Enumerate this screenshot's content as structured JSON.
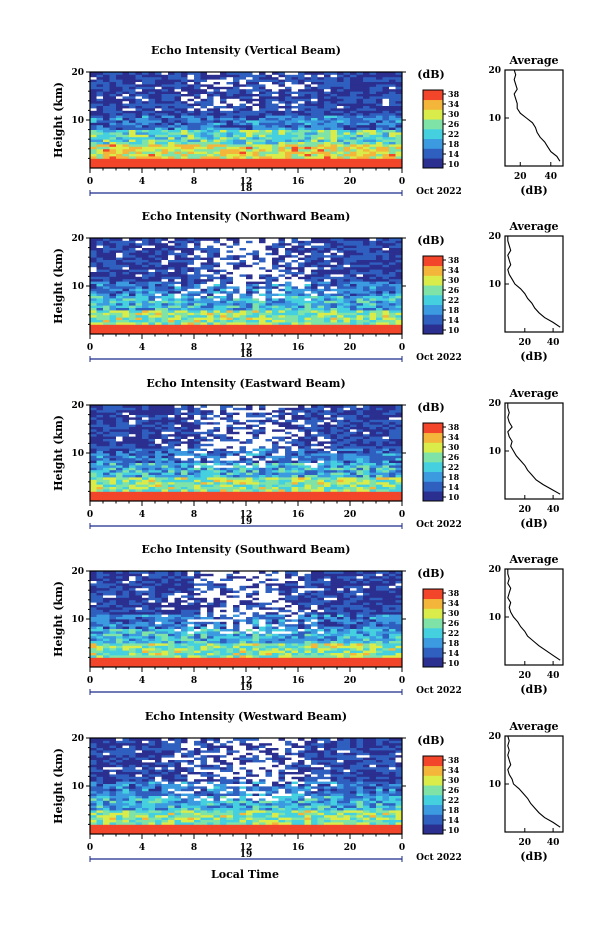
{
  "common": {
    "x_ticks": [
      "0",
      "4",
      "8",
      "12",
      "16",
      "20",
      "0"
    ],
    "x_values": [
      0,
      4,
      8,
      12,
      16,
      20,
      24
    ],
    "y_ticks_heat": [
      "20",
      "10"
    ],
    "y_ticks_avg": [
      "20",
      "10"
    ],
    "ylabel": "Height (km)",
    "unit": "(dB)",
    "avg_title": "Average",
    "avg_xlabel": "(dB)",
    "month": "Oct 2022",
    "colorbar_ticks": [
      "38",
      "34",
      "30",
      "26",
      "22",
      "18",
      "14",
      "10"
    ],
    "xlabel": "Local Time",
    "colors": [
      "#2b2f8f",
      "#2f5fbf",
      "#3b9ae0",
      "#45d0e0",
      "#7fe3a8",
      "#d9ec4a",
      "#f4b63a",
      "#f2452a"
    ]
  },
  "chart_data": [
    {
      "type": "heatmap",
      "title": "Echo Intensity (Vertical Beam)",
      "day_label": "18",
      "avg_ticks": [
        "20",
        "40"
      ],
      "avg_xlim": [
        10,
        48
      ],
      "ylim": [
        0,
        20
      ],
      "xlim": [
        0,
        24
      ],
      "profile": [
        [
          46,
          1
        ],
        [
          44,
          2
        ],
        [
          40,
          3
        ],
        [
          38,
          4
        ],
        [
          36,
          5
        ],
        [
          33,
          6
        ],
        [
          31,
          7
        ],
        [
          30,
          8
        ],
        [
          28,
          9
        ],
        [
          24,
          10
        ],
        [
          20,
          11
        ],
        [
          18,
          12
        ],
        [
          18,
          13
        ],
        [
          17,
          14
        ],
        [
          16,
          15
        ],
        [
          18,
          16
        ],
        [
          17,
          17
        ],
        [
          16,
          18
        ],
        [
          17,
          19
        ],
        [
          16,
          20
        ]
      ]
    },
    {
      "type": "heatmap",
      "title": "Echo Intensity (Northward Beam)",
      "day_label": "18",
      "avg_ticks": [
        "20",
        "40"
      ],
      "avg_xlim": [
        6,
        47
      ],
      "ylim": [
        0,
        20
      ],
      "xlim": [
        0,
        24
      ],
      "profile": [
        [
          45,
          1
        ],
        [
          40,
          2
        ],
        [
          34,
          3
        ],
        [
          30,
          4
        ],
        [
          27,
          5
        ],
        [
          25,
          6
        ],
        [
          22,
          7
        ],
        [
          20,
          8
        ],
        [
          17,
          9
        ],
        [
          13,
          10
        ],
        [
          11,
          11
        ],
        [
          9,
          12
        ],
        [
          8,
          13
        ],
        [
          10,
          14
        ],
        [
          9,
          15
        ],
        [
          8,
          16
        ],
        [
          10,
          17
        ],
        [
          9,
          18
        ],
        [
          8,
          19
        ],
        [
          8,
          20
        ]
      ]
    },
    {
      "type": "heatmap",
      "title": "Echo Intensity (Eastward Beam)",
      "day_label": "19",
      "avg_ticks": [
        "20",
        "40"
      ],
      "avg_xlim": [
        6,
        47
      ],
      "ylim": [
        0,
        20
      ],
      "xlim": [
        0,
        24
      ],
      "profile": [
        [
          45,
          1
        ],
        [
          39,
          2
        ],
        [
          33,
          3
        ],
        [
          28,
          4
        ],
        [
          25,
          5
        ],
        [
          22,
          6
        ],
        [
          20,
          7
        ],
        [
          17,
          8
        ],
        [
          14,
          9
        ],
        [
          12,
          10
        ],
        [
          10,
          11
        ],
        [
          11,
          12
        ],
        [
          9,
          13
        ],
        [
          8,
          14
        ],
        [
          11,
          15
        ],
        [
          9,
          16
        ],
        [
          8,
          17
        ],
        [
          9,
          18
        ],
        [
          8,
          19
        ],
        [
          8,
          20
        ]
      ]
    },
    {
      "type": "heatmap",
      "title": "Echo Intensity (Southward Beam)",
      "day_label": "19",
      "avg_ticks": [
        "20",
        "40"
      ],
      "avg_xlim": [
        6,
        47
      ],
      "ylim": [
        0,
        20
      ],
      "xlim": [
        0,
        24
      ],
      "profile": [
        [
          45,
          1
        ],
        [
          40,
          2
        ],
        [
          35,
          3
        ],
        [
          30,
          4
        ],
        [
          26,
          5
        ],
        [
          22,
          6
        ],
        [
          20,
          7
        ],
        [
          17,
          8
        ],
        [
          15,
          9
        ],
        [
          12,
          10
        ],
        [
          10,
          11
        ],
        [
          9,
          12
        ],
        [
          10,
          13
        ],
        [
          8,
          14
        ],
        [
          9,
          15
        ],
        [
          10,
          16
        ],
        [
          8,
          17
        ],
        [
          9,
          18
        ],
        [
          8,
          19
        ],
        [
          8,
          20
        ]
      ]
    },
    {
      "type": "heatmap",
      "title": "Echo Intensity (Westward Beam)",
      "day_label": "19",
      "avg_ticks": [
        "20",
        "40"
      ],
      "avg_xlim": [
        6,
        47
      ],
      "ylim": [
        0,
        20
      ],
      "xlim": [
        0,
        24
      ],
      "profile": [
        [
          45,
          1
        ],
        [
          40,
          2
        ],
        [
          34,
          3
        ],
        [
          30,
          4
        ],
        [
          27,
          5
        ],
        [
          24,
          6
        ],
        [
          22,
          7
        ],
        [
          19,
          8
        ],
        [
          16,
          9
        ],
        [
          12,
          10
        ],
        [
          11,
          11
        ],
        [
          9,
          12
        ],
        [
          8,
          13
        ],
        [
          10,
          14
        ],
        [
          9,
          15
        ],
        [
          8,
          16
        ],
        [
          9,
          17
        ],
        [
          8,
          18
        ],
        [
          9,
          19
        ],
        [
          8,
          20
        ]
      ]
    }
  ]
}
